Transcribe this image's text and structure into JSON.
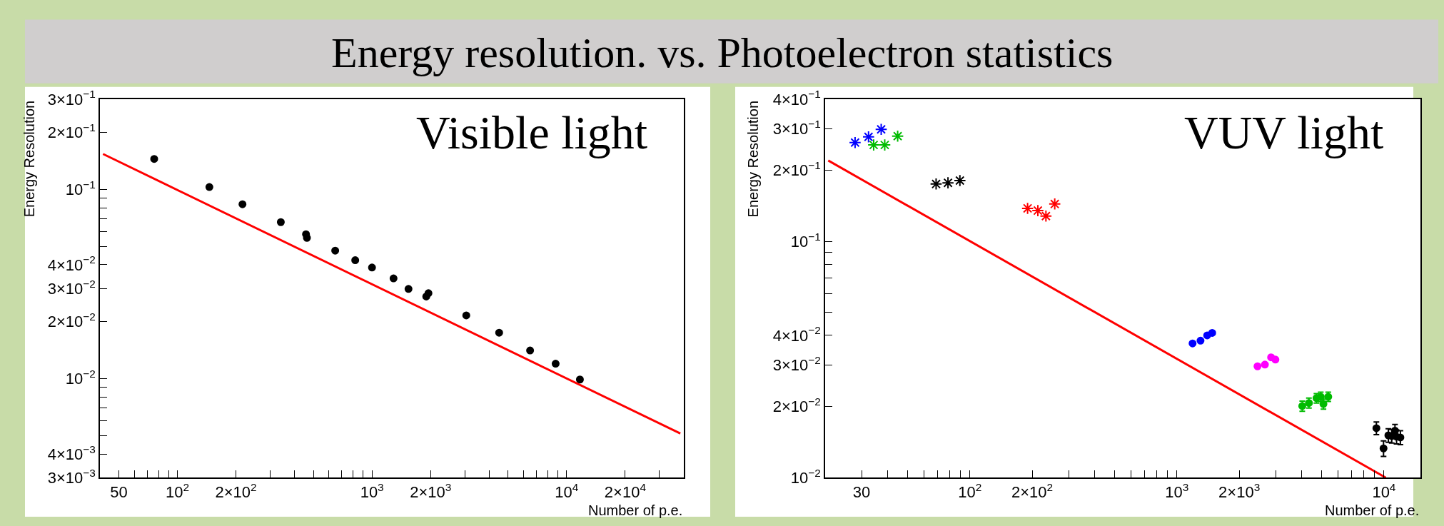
{
  "chart_data": [
    {
      "type": "scatter",
      "title": "Visible light",
      "ylabel": "Energy Resolution",
      "xlabel": "Number of p.e.",
      "annotations": [
        "Energy resolution. vs. Photoelectron statistics"
      ],
      "log": "xy",
      "xlim": [
        40,
        40000
      ],
      "ylim": [
        0.003,
        0.3
      ],
      "xticks": [
        50,
        {
          "value": 60,
          "label": null
        },
        {
          "value": 70,
          "label": null
        },
        {
          "value": 80,
          "label": null
        },
        {
          "value": 90,
          "label": null
        },
        {
          "value": 100,
          "label": "10$^{2}$"
        },
        {
          "value": 200,
          "label": "2×10$^{2}$"
        },
        {
          "value": 300,
          "label": null
        },
        {
          "value": 400,
          "label": null
        },
        {
          "value": 500,
          "label": null
        },
        {
          "value": 600,
          "label": null
        },
        {
          "value": 700,
          "label": null
        },
        {
          "value": 800,
          "label": null
        },
        {
          "value": 900,
          "label": null
        },
        {
          "value": 1000,
          "label": "10$^{3}$"
        },
        {
          "value": 2000,
          "label": "2×10$^{3}$"
        },
        {
          "value": 3000,
          "label": null
        },
        {
          "value": 4000,
          "label": null
        },
        {
          "value": 5000,
          "label": null
        },
        {
          "value": 6000,
          "label": null
        },
        {
          "value": 7000,
          "label": null
        },
        {
          "value": 8000,
          "label": null
        },
        {
          "value": 9000,
          "label": null
        },
        {
          "value": 10000,
          "label": "10$^{4}$"
        },
        {
          "value": 20000,
          "label": "2×10$^{4}$"
        },
        {
          "value": 30000,
          "label": null
        }
      ],
      "yticks": [
        {
          "value": 0.003,
          "label": "3×10$^{−3}$"
        },
        {
          "value": 0.004,
          "label": "4×10$^{−3}$"
        },
        {
          "value": 0.005,
          "label": null
        },
        {
          "value": 0.006,
          "label": null
        },
        {
          "value": 0.007,
          "label": null
        },
        {
          "value": 0.008,
          "label": null
        },
        {
          "value": 0.009,
          "label": null
        },
        {
          "value": 0.01,
          "label": "10$^{−2}$"
        },
        {
          "value": 0.02,
          "label": "2×10$^{−2}$"
        },
        {
          "value": 0.03,
          "label": "3×10$^{−2}$"
        },
        {
          "value": 0.04,
          "label": "4×10$^{−2}$"
        },
        {
          "value": 0.05,
          "label": null
        },
        {
          "value": 0.06,
          "label": null
        },
        {
          "value": 0.07,
          "label": null
        },
        {
          "value": 0.08,
          "label": null
        },
        {
          "value": 0.09,
          "label": null
        },
        {
          "value": 0.1,
          "label": "10$^{−1}$"
        },
        {
          "value": 0.2,
          "label": "2×10$^{−1}$"
        },
        {
          "value": 0.3,
          "label": "3×10$^{−1}$"
        }
      ],
      "series": [
        {
          "color": "#000000",
          "marker": "circle",
          "x": [
            76,
            146,
            216,
            340,
            458,
            463,
            647,
            820,
            1000,
            1290,
            1540,
            1900,
            1950,
            3050,
            4500,
            6490,
            8780,
            11700
          ],
          "values": [
            0.145,
            0.103,
            0.0835,
            0.0672,
            0.058,
            0.0555,
            0.0475,
            0.0423,
            0.0387,
            0.0339,
            0.0298,
            0.0272,
            0.0283,
            0.0216,
            0.0175,
            0.0141,
            0.012,
            0.0099
          ]
        },
        {
          "type": "line",
          "color": "#ff0000",
          "line_style": "solid",
          "x": [
            41.5,
            38400
          ],
          "values": [
            0.154,
            0.00513
          ]
        }
      ]
    },
    {
      "type": "scatter",
      "title": "VUV light",
      "ylabel": "Energy Resolution",
      "xlabel": "Number of p.e.",
      "log": "xy",
      "xlim": [
        20,
        15000
      ],
      "ylim": [
        0.01,
        0.4
      ],
      "xticks": [
        30,
        {
          "value": 40,
          "label": null
        },
        {
          "value": 50,
          "label": null
        },
        {
          "value": 60,
          "label": null
        },
        {
          "value": 70,
          "label": null
        },
        {
          "value": 80,
          "label": null
        },
        {
          "value": 90,
          "label": null
        },
        {
          "value": 100,
          "label": "10$^{2}$"
        },
        {
          "value": 200,
          "label": "2×10$^{2}$"
        },
        {
          "value": 300,
          "label": null
        },
        {
          "value": 400,
          "label": null
        },
        {
          "value": 500,
          "label": null
        },
        {
          "value": 600,
          "label": null
        },
        {
          "value": 700,
          "label": null
        },
        {
          "value": 800,
          "label": null
        },
        {
          "value": 900,
          "label": null
        },
        {
          "value": 1000,
          "label": "10$^{3}$"
        },
        {
          "value": 2000,
          "label": "2×10$^{3}$"
        },
        {
          "value": 3000,
          "label": null
        },
        {
          "value": 4000,
          "label": null
        },
        {
          "value": 5000,
          "label": null
        },
        {
          "value": 6000,
          "label": null
        },
        {
          "value": 7000,
          "label": null
        },
        {
          "value": 8000,
          "label": null
        },
        {
          "value": 9000,
          "label": null
        },
        {
          "value": 10000,
          "label": "10$^{4}$"
        }
      ],
      "yticks": [
        {
          "value": 0.01,
          "label": "10$^{−2}$"
        },
        {
          "value": 0.02,
          "label": "2×10$^{−2}$"
        },
        {
          "value": 0.03,
          "label": "3×10$^{−2}$"
        },
        {
          "value": 0.04,
          "label": "4×10$^{−2}$"
        },
        {
          "value": 0.05,
          "label": null
        },
        {
          "value": 0.06,
          "label": null
        },
        {
          "value": 0.07,
          "label": null
        },
        {
          "value": 0.08,
          "label": null
        },
        {
          "value": 0.09,
          "label": null
        },
        {
          "value": 0.1,
          "label": "10$^{−1}$"
        },
        {
          "value": 0.2,
          "label": "2×10$^{−1}$"
        },
        {
          "value": 0.3,
          "label": "3×10$^{−1}$"
        },
        {
          "value": 0.4,
          "label": "4×10$^{−1}$"
        }
      ],
      "series": [
        {
          "color": "#0000ff",
          "marker": "cross",
          "x": [
            27.9,
            32.4,
            37.3
          ],
          "values": [
            0.262,
            0.277,
            0.298
          ]
        },
        {
          "color": "#00bb00",
          "marker": "cross",
          "x": [
            34.3,
            38.8,
            44.8
          ],
          "values": [
            0.256,
            0.256,
            0.279
          ]
        },
        {
          "color": "#000000",
          "marker": "cross",
          "x": [
            68.7,
            78.4,
            89.5
          ],
          "values": [
            0.175,
            0.177,
            0.181
          ]
        },
        {
          "color": "#ff0000",
          "marker": "cross",
          "x": [
            190,
            213,
            233,
            257
          ],
          "values": [
            0.138,
            0.135,
            0.128,
            0.144
          ]
        },
        {
          "color": "#0000ff",
          "marker": "circle",
          "x": [
            1190,
            1300,
            1400,
            1480
          ],
          "values": [
            0.037,
            0.038,
            0.04,
            0.041
          ]
        },
        {
          "color": "#ff00ff",
          "marker": "circle",
          "x": [
            2450,
            2660,
            2850,
            2990
          ],
          "values": [
            0.0296,
            0.0301,
            0.0323,
            0.0316
          ]
        },
        {
          "color": "#00bb00",
          "marker": "circle",
          "x": [
            4030,
            4340,
            4720,
            4950,
            5100,
            5380
          ],
          "values": [
            0.0201,
            0.0207,
            0.0217,
            0.022,
            0.0205,
            0.022
          ],
          "errors": [
            0.001,
            0.001,
            0.001,
            0.001,
            0.001,
            0.001
          ]
        },
        {
          "color": "#000000",
          "marker": "circle",
          "x": [
            9190,
            9950,
            10500,
            10900,
            11300,
            11500,
            12000
          ],
          "values": [
            0.0162,
            0.0133,
            0.0151,
            0.015,
            0.0158,
            0.0149,
            0.0148
          ],
          "errors": [
            0.001,
            0.001,
            0.001,
            0.001,
            0.001,
            0.001,
            0.001
          ]
        },
        {
          "type": "line",
          "color": "#ff0000",
          "line_style": "solid",
          "x": [
            20.7,
            10200
          ],
          "values": [
            0.22,
            0.01
          ]
        }
      ]
    }
  ]
}
